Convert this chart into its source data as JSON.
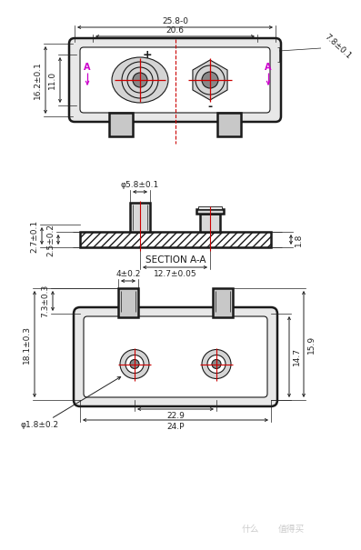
{
  "bg_color": "#ffffff",
  "line_color": "#1a1a1a",
  "red_color": "#cc0000",
  "magenta_color": "#cc00cc",
  "dim_color": "#222222",
  "section_label": "SECTION A-A",
  "dims_top": {
    "width_outer": "25.8-0",
    "width_inner": "20.6",
    "height_left": "16.2±0.1",
    "height_inner": "11.0",
    "height_right": "7.8±0.1"
  },
  "dims_mid": {
    "dia": "φ5.8±0.1",
    "span": "12.7±0.05",
    "height_left": "2.7±0.1",
    "height_2": "2.5±0.2",
    "height_right": "1.8"
  },
  "dims_bot": {
    "tab_width": "4±0.2",
    "height_73": "7.3±0.3",
    "height_181": "18.1±0.3",
    "dia_pin": "φ1.8±0.2",
    "span_229": "22.9",
    "span_248": "24.P",
    "height_147": "14.7",
    "height_159": "15.9"
  }
}
